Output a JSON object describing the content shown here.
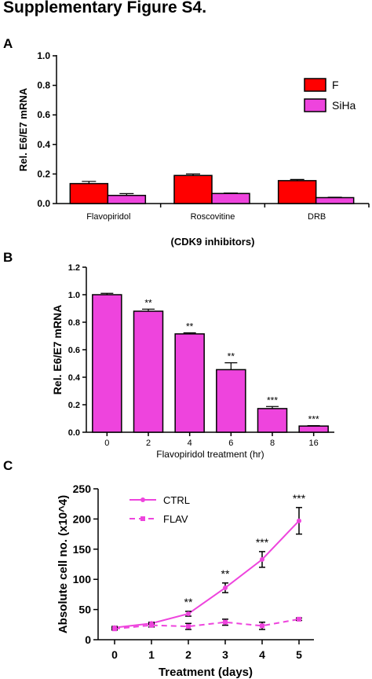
{
  "page": {
    "title": "Supplementary Figure S4."
  },
  "panels": {
    "a": "A",
    "b": "B",
    "c": "C"
  },
  "colors": {
    "red": "#ff0000",
    "magenta": "#ee44dd",
    "black": "#000000"
  },
  "chart_data": [
    {
      "panel": "A",
      "type": "bar",
      "ylabel": "Rel. E6/E7 mRNA",
      "xlabel": "(CDK9 inhibitors)",
      "ylim": [
        0,
        1.0
      ],
      "yticks": [
        "0.0",
        "0.2",
        "0.4",
        "0.6",
        "0.8",
        "1.0"
      ],
      "categories": [
        "Flavopiridol",
        "Roscovitine",
        "DRB"
      ],
      "legend_position": "top-right",
      "series": [
        {
          "name": "F",
          "color": "#ff0000",
          "values": [
            0.135,
            0.19,
            0.155
          ],
          "errors": [
            0.015,
            0.01,
            0.008
          ]
        },
        {
          "name": "SiHa",
          "color": "#ee44dd",
          "values": [
            0.055,
            0.068,
            0.04
          ],
          "errors": [
            0.012,
            0.003,
            0.003
          ]
        }
      ]
    },
    {
      "panel": "B",
      "type": "bar",
      "ylabel": "Rel. E6/E7 mRNA",
      "xlabel": "Flavopiridol treatment (hr)",
      "ylim": [
        0,
        1.2
      ],
      "yticks": [
        "0.0",
        "0.2",
        "0.4",
        "0.6",
        "0.8",
        "1.0",
        "1.2"
      ],
      "categories": [
        "0",
        "2",
        "4",
        "6",
        "8",
        "16"
      ],
      "values": [
        1.0,
        0.88,
        0.715,
        0.455,
        0.172,
        0.045
      ],
      "errors": [
        0.01,
        0.015,
        0.008,
        0.05,
        0.015,
        0.003
      ],
      "significance": [
        "",
        "**",
        "**",
        "**",
        "***",
        "***"
      ],
      "color": "#ee44dd"
    },
    {
      "panel": "C",
      "type": "line",
      "ylabel": "Absolute cell no. (x10^4)",
      "xlabel": "Treatment (days)",
      "xlim": [
        0,
        5
      ],
      "ylim": [
        0,
        250
      ],
      "xticks": [
        "0",
        "1",
        "2",
        "3",
        "4",
        "5"
      ],
      "yticks": [
        "0",
        "50",
        "100",
        "150",
        "200",
        "250"
      ],
      "legend_position": "top-left",
      "x": [
        0,
        1,
        2,
        3,
        4,
        5
      ],
      "series": [
        {
          "name": "CTRL",
          "style": "solid",
          "color": "#ee44dd",
          "values": [
            20,
            27,
            43,
            86,
            133,
            197
          ],
          "errors": [
            2,
            2,
            4,
            8,
            13,
            22
          ]
        },
        {
          "name": "FLAV",
          "style": "dashed",
          "color": "#ee44dd",
          "values": [
            18,
            24,
            22,
            29,
            23,
            34
          ],
          "errors": [
            2,
            3,
            5,
            5,
            6,
            2
          ]
        }
      ],
      "significance": [
        "",
        "",
        "**",
        "**",
        "***",
        "***"
      ]
    }
  ]
}
